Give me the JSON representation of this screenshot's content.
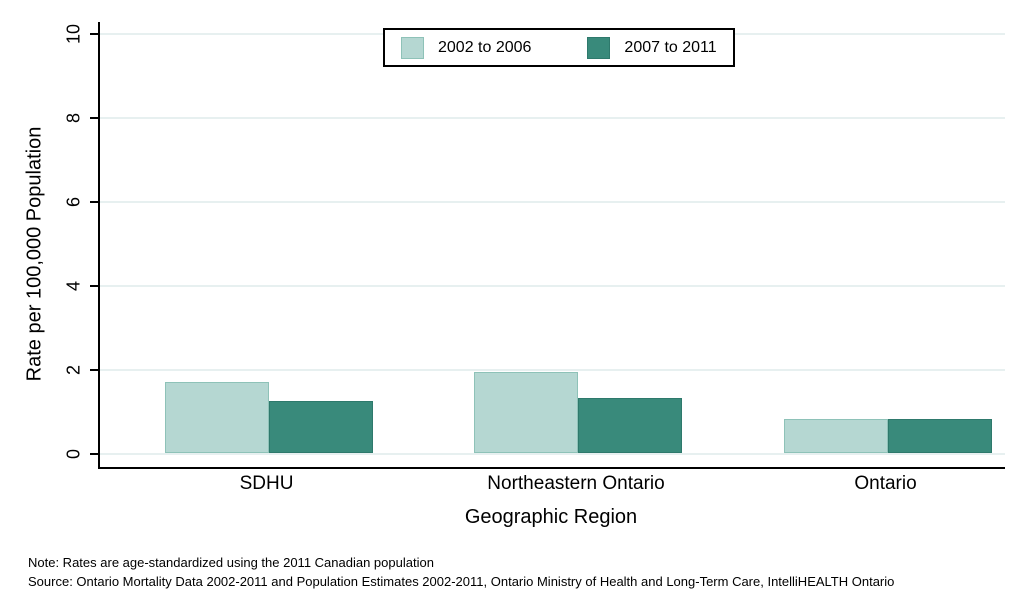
{
  "chart_data": {
    "type": "bar",
    "categories": [
      "SDHU",
      "Northeastern Ontario",
      "Ontario"
    ],
    "series": [
      {
        "name": "2002 to 2006",
        "color": "#b5d7d2",
        "border_color": "#8ec2b8",
        "values": [
          1.7,
          1.95,
          0.83
        ]
      },
      {
        "name": "2007 to 2011",
        "color": "#398a7b",
        "border_color": "#2e796c",
        "values": [
          1.26,
          1.33,
          0.81
        ]
      }
    ],
    "xlabel": "Geographic Region",
    "ylabel": "Rate per 100,000 Population",
    "ylim": [
      0,
      10
    ],
    "yticks": [
      0,
      2,
      4,
      6,
      8,
      10
    ],
    "grid": "horizontal",
    "gridline_color": "#e7f0f0",
    "legend_position": "top-center"
  },
  "notes": {
    "note": "Note: Rates are age-standardized using the 2011 Canadian population",
    "source": "Source: Ontario Mortality Data 2002-2011 and Population Estimates 2002-2011, Ontario Ministry of Health and Long-Term Care, IntelliHEALTH Ontario"
  }
}
